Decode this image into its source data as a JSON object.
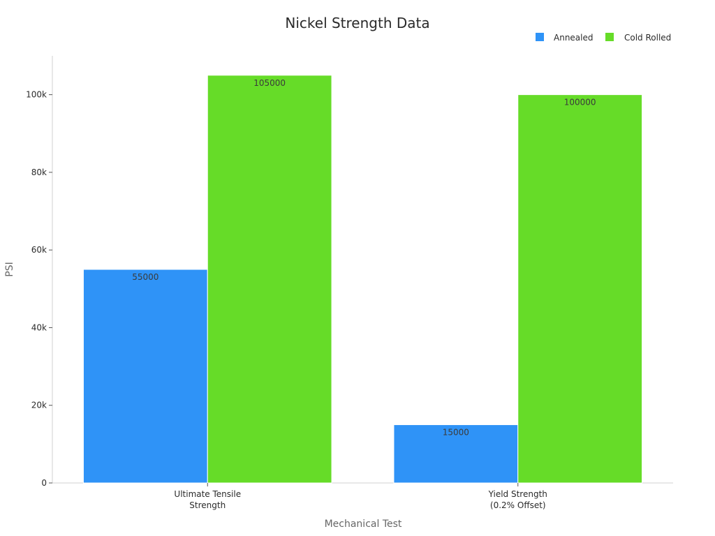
{
  "chart_data": {
    "type": "bar",
    "title": "Nickel Strength Data",
    "xlabel": "Mechanical Test",
    "ylabel": "PSI",
    "categories": [
      [
        "Ultimate Tensile",
        "Strength"
      ],
      [
        "Yield Strength",
        "(0.2% Offset)"
      ]
    ],
    "series": [
      {
        "name": "Annealed",
        "values": [
          55000,
          15000
        ],
        "color": "#2f93f7"
      },
      {
        "name": "Cold Rolled",
        "values": [
          105000,
          100000
        ],
        "color": "#66dc28"
      }
    ],
    "ylim": [
      0,
      110000
    ],
    "yticks": [
      0,
      20000,
      40000,
      60000,
      80000,
      100000
    ],
    "ytick_labels": [
      "0",
      "20k",
      "40k",
      "60k",
      "80k",
      "100k"
    ],
    "data_labels": [
      [
        "55000",
        "15000"
      ],
      [
        "105000",
        "100000"
      ]
    ],
    "legend_position": "top-right",
    "grid": false
  }
}
